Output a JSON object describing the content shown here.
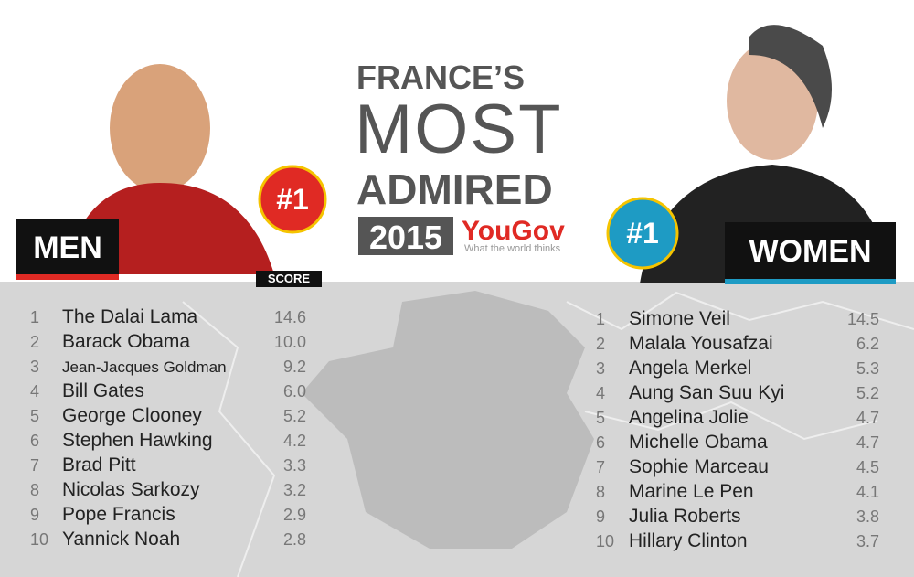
{
  "header": {
    "line1": "FRANCE’S",
    "line2": "MOST",
    "line3": "ADMIRED",
    "year": "2015",
    "brand": "YouGov",
    "tagline": "What the world thinks"
  },
  "men": {
    "label": "MEN",
    "badge": "#1",
    "score_label": "SCORE",
    "rows": [
      [
        "1",
        "The Dalai Lama",
        "14.6"
      ],
      [
        "2",
        "Barack Obama",
        "10.0"
      ],
      [
        "3",
        "Jean-Jacques Goldman",
        "9.2"
      ],
      [
        "4",
        "Bill Gates",
        "6.0"
      ],
      [
        "5",
        "George Clooney",
        "5.2"
      ],
      [
        "6",
        "Stephen Hawking",
        "4.2"
      ],
      [
        "7",
        "Brad Pitt",
        "3.3"
      ],
      [
        "8",
        "Nicolas Sarkozy",
        "3.2"
      ],
      [
        "9",
        "Pope Francis",
        "2.9"
      ],
      [
        "10",
        "Yannick Noah",
        "2.8"
      ]
    ]
  },
  "women": {
    "label": "WOMEN",
    "badge": "#1",
    "rows": [
      [
        "1",
        "Simone Veil",
        "14.5"
      ],
      [
        "2",
        "Malala Yousafzai",
        "6.2"
      ],
      [
        "3",
        "Angela Merkel",
        "5.3"
      ],
      [
        "4",
        "Aung San Suu Kyi",
        "5.2"
      ],
      [
        "5",
        "Angelina Jolie",
        "4.7"
      ],
      [
        "6",
        "Michelle Obama",
        "4.7"
      ],
      [
        "7",
        "Sophie Marceau",
        "4.5"
      ],
      [
        "8",
        "Marine Le Pen",
        "4.1"
      ],
      [
        "9",
        "Julia Roberts",
        "3.8"
      ],
      [
        "10",
        "Hillary Clinton",
        "3.7"
      ]
    ]
  }
}
